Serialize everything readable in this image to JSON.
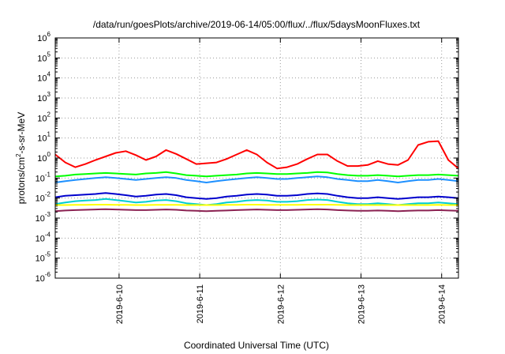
{
  "chart_data": {
    "type": "line",
    "title": "/data/run/goesPlots/archive/2019-06-14/05:00/flux/../flux/5daysMoonFluxes.txt",
    "xlabel": "Coordinated Universal Time (UTC)",
    "ylabel": {
      "main": "protons/cm",
      "sup": "2",
      "rest": "-s-sr-MeV"
    },
    "yscale": "log",
    "ylim": [
      1e-06,
      1000000.0
    ],
    "y_ticks": [
      {
        "value": 1e-06,
        "base": "10",
        "exp": "-6"
      },
      {
        "value": 1e-05,
        "base": "10",
        "exp": "-5"
      },
      {
        "value": 0.0001,
        "base": "10",
        "exp": "-4"
      },
      {
        "value": 0.001,
        "base": "10",
        "exp": "-3"
      },
      {
        "value": 0.01,
        "base": "10",
        "exp": "-2"
      },
      {
        "value": 0.1,
        "base": "10",
        "exp": "-1"
      },
      {
        "value": 1,
        "base": "10",
        "exp": "0"
      },
      {
        "value": 10,
        "base": "10",
        "exp": "1"
      },
      {
        "value": 100,
        "base": "10",
        "exp": "2"
      },
      {
        "value": 1000,
        "base": "10",
        "exp": "3"
      },
      {
        "value": 10000,
        "base": "10",
        "exp": "4"
      },
      {
        "value": 100000,
        "base": "10",
        "exp": "5"
      },
      {
        "value": 1000000,
        "base": "10",
        "exp": "6"
      }
    ],
    "xlim": [
      "2019-06-09T05:00",
      "2019-06-14T05:00"
    ],
    "x_ticks": [
      {
        "value": "2019-06-10T00:00",
        "label": "2019-6-10"
      },
      {
        "value": "2019-06-11T00:00",
        "label": "2019-6-11"
      },
      {
        "value": "2019-06-12T00:00",
        "label": "2019-6-12"
      },
      {
        "value": "2019-06-13T00:00",
        "label": "2019-6-13"
      },
      {
        "value": "2019-06-14T00:00",
        "label": "2019-6-14"
      }
    ],
    "grid": true,
    "legend": "none",
    "x": [
      "2019-06-09T05:00",
      "2019-06-09T08:00",
      "2019-06-09T11:00",
      "2019-06-09T14:00",
      "2019-06-09T17:00",
      "2019-06-09T20:00",
      "2019-06-09T23:00",
      "2019-06-10T02:00",
      "2019-06-10T05:00",
      "2019-06-10T08:00",
      "2019-06-10T11:00",
      "2019-06-10T14:00",
      "2019-06-10T17:00",
      "2019-06-10T20:00",
      "2019-06-10T23:00",
      "2019-06-11T02:00",
      "2019-06-11T05:00",
      "2019-06-11T08:00",
      "2019-06-11T11:00",
      "2019-06-11T14:00",
      "2019-06-11T17:00",
      "2019-06-11T20:00",
      "2019-06-11T23:00",
      "2019-06-12T02:00",
      "2019-06-12T05:00",
      "2019-06-12T08:00",
      "2019-06-12T11:00",
      "2019-06-12T14:00",
      "2019-06-12T17:00",
      "2019-06-12T20:00",
      "2019-06-12T23:00",
      "2019-06-13T02:00",
      "2019-06-13T05:00",
      "2019-06-13T08:00",
      "2019-06-13T11:00",
      "2019-06-13T14:00",
      "2019-06-13T17:00",
      "2019-06-13T20:00",
      "2019-06-13T23:00",
      "2019-06-14T02:00",
      "2019-06-14T05:00"
    ],
    "series": [
      {
        "color": "#ff0000",
        "values": [
          1.5,
          0.6,
          0.35,
          0.5,
          0.8,
          1.2,
          1.8,
          2.2,
          1.4,
          0.8,
          1.2,
          2.5,
          1.6,
          0.9,
          0.5,
          0.55,
          0.6,
          0.9,
          1.5,
          2.5,
          1.5,
          0.6,
          0.3,
          0.35,
          0.5,
          0.9,
          1.5,
          1.5,
          0.7,
          0.4,
          0.4,
          0.45,
          0.7,
          0.5,
          0.45,
          0.8,
          4.5,
          6.5,
          7.0,
          0.8,
          0.3
        ]
      },
      {
        "color": "#00ff00",
        "values": [
          0.12,
          0.13,
          0.15,
          0.16,
          0.17,
          0.18,
          0.17,
          0.16,
          0.15,
          0.17,
          0.18,
          0.2,
          0.17,
          0.14,
          0.13,
          0.12,
          0.13,
          0.14,
          0.15,
          0.17,
          0.18,
          0.17,
          0.16,
          0.16,
          0.17,
          0.18,
          0.2,
          0.19,
          0.16,
          0.14,
          0.13,
          0.13,
          0.14,
          0.13,
          0.12,
          0.13,
          0.14,
          0.14,
          0.15,
          0.14,
          0.13
        ]
      },
      {
        "color": "#1e90ff",
        "values": [
          0.06,
          0.07,
          0.08,
          0.09,
          0.1,
          0.11,
          0.1,
          0.09,
          0.08,
          0.09,
          0.1,
          0.11,
          0.1,
          0.08,
          0.07,
          0.06,
          0.07,
          0.08,
          0.09,
          0.1,
          0.11,
          0.1,
          0.09,
          0.09,
          0.1,
          0.11,
          0.12,
          0.11,
          0.09,
          0.08,
          0.07,
          0.07,
          0.08,
          0.07,
          0.06,
          0.07,
          0.08,
          0.08,
          0.09,
          0.08,
          0.07
        ]
      },
      {
        "color": "#0000cd",
        "values": [
          0.011,
          0.013,
          0.014,
          0.015,
          0.016,
          0.018,
          0.016,
          0.014,
          0.012,
          0.013,
          0.015,
          0.016,
          0.014,
          0.011,
          0.01,
          0.009,
          0.01,
          0.012,
          0.013,
          0.015,
          0.016,
          0.015,
          0.013,
          0.013,
          0.014,
          0.016,
          0.017,
          0.016,
          0.013,
          0.011,
          0.01,
          0.01,
          0.011,
          0.01,
          0.009,
          0.01,
          0.011,
          0.011,
          0.012,
          0.011,
          0.01
        ]
      },
      {
        "color": "#00ced1",
        "values": [
          0.005,
          0.006,
          0.007,
          0.0075,
          0.008,
          0.009,
          0.008,
          0.007,
          0.006,
          0.0065,
          0.0075,
          0.008,
          0.007,
          0.0055,
          0.005,
          0.0045,
          0.005,
          0.006,
          0.0065,
          0.0075,
          0.008,
          0.0075,
          0.0065,
          0.0065,
          0.007,
          0.008,
          0.0085,
          0.008,
          0.0065,
          0.0055,
          0.005,
          0.005,
          0.0055,
          0.005,
          0.0045,
          0.005,
          0.0055,
          0.0055,
          0.006,
          0.0055,
          0.005
        ]
      },
      {
        "color": "#ffff00",
        "values": [
          0.0045,
          0.0045,
          0.0046,
          0.0046,
          0.0047,
          0.0047,
          0.0046,
          0.0046,
          0.0045,
          0.0045,
          0.0046,
          0.0046,
          0.0046,
          0.0045,
          0.0045,
          0.0045,
          0.0045,
          0.0046,
          0.0046,
          0.0047,
          0.0047,
          0.0046,
          0.0046,
          0.0046,
          0.0046,
          0.0047,
          0.0047,
          0.0047,
          0.0046,
          0.0045,
          0.0045,
          0.0045,
          0.0045,
          0.0045,
          0.0045,
          0.0045,
          0.0045,
          0.0045,
          0.0046,
          0.0045,
          0.0045
        ]
      },
      {
        "color": "#8b2252",
        "values": [
          0.0022,
          0.0024,
          0.0025,
          0.0026,
          0.0027,
          0.0028,
          0.0027,
          0.0026,
          0.0025,
          0.0025,
          0.0026,
          0.0027,
          0.0026,
          0.0024,
          0.0023,
          0.0022,
          0.0023,
          0.0024,
          0.0025,
          0.0026,
          0.0027,
          0.0026,
          0.0025,
          0.0025,
          0.0026,
          0.0027,
          0.0028,
          0.0027,
          0.0025,
          0.0024,
          0.0023,
          0.0023,
          0.0024,
          0.0023,
          0.0022,
          0.0023,
          0.0024,
          0.0024,
          0.0025,
          0.0024,
          0.0023
        ]
      }
    ]
  }
}
